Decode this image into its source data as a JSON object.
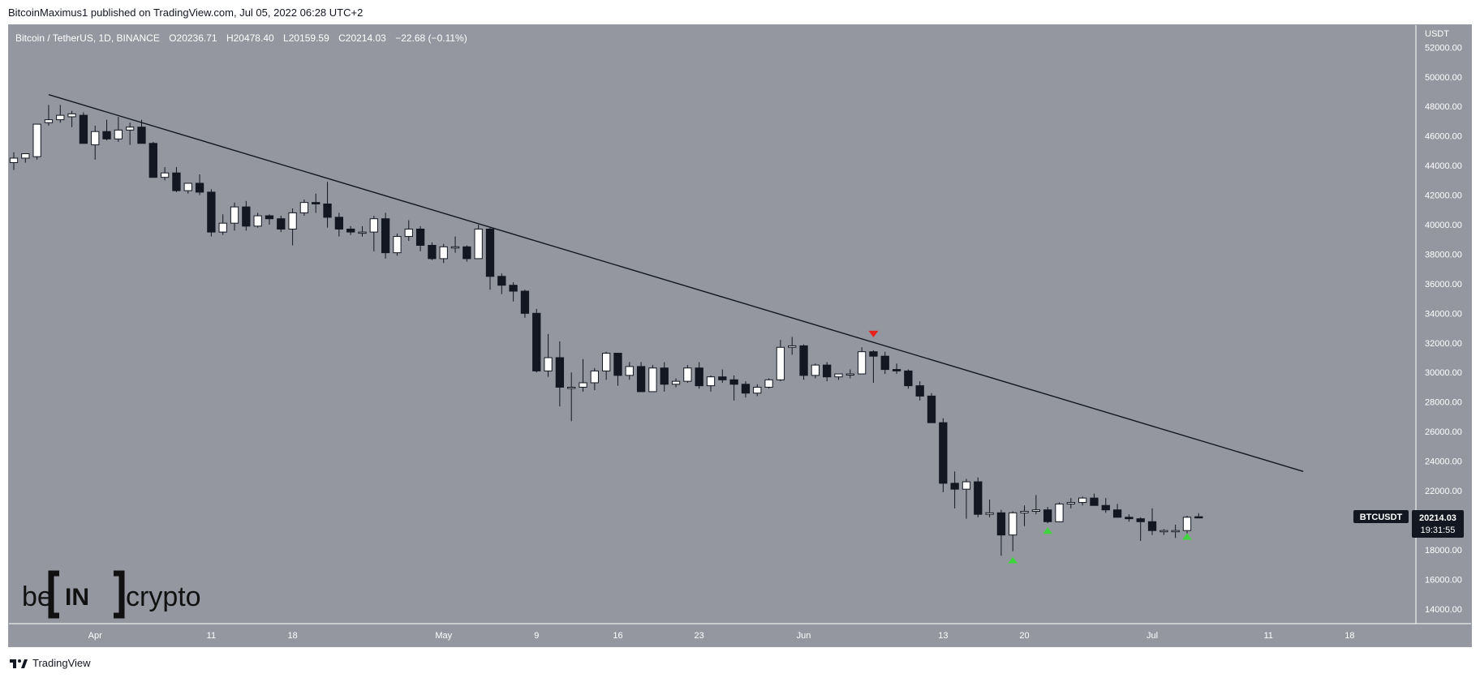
{
  "header": {
    "published_text": "BitcoinMaximus1 published on TradingView.com, Jul 05, 2022 06:28 UTC+2"
  },
  "symbol_info": {
    "title": "Bitcoin / TetherUS, 1D, BINANCE",
    "open_label": "O",
    "open": "20236.71",
    "high_label": "H",
    "high": "20478.40",
    "low_label": "L",
    "low": "20159.59",
    "close_label": "C",
    "close": "20214.03",
    "change": "−22.68 (−0.11%)"
  },
  "price_tag": {
    "symbol": "BTCUSDT",
    "price": "20214.03",
    "countdown": "19:31:55"
  },
  "watermark": {
    "text_left": "be",
    "text_bracket": "IN",
    "text_right": "crypto"
  },
  "footer": {
    "brand": "TradingView"
  },
  "colors": {
    "background": "#94979f",
    "candle_up": "#ffffff",
    "candle_down": "#131722",
    "trendline": "#131722",
    "marker_down": "#e8221b",
    "marker_up": "#3fd43f"
  },
  "chart_data": {
    "type": "candlestick",
    "title": "Bitcoin / TetherUS, 1D, BINANCE",
    "y_axis_unit": "USDT",
    "ylim": [
      13000,
      53500
    ],
    "y_ticks": [
      14000,
      16000,
      18000,
      20000,
      22000,
      24000,
      26000,
      28000,
      30000,
      32000,
      34000,
      36000,
      38000,
      40000,
      42000,
      44000,
      46000,
      48000,
      50000,
      52000
    ],
    "y_tick_labels": [
      "14000.00",
      "16000.00",
      "18000.00",
      "20000.00",
      "22000.00",
      "24000.00",
      "26000.00",
      "28000.00",
      "30000.00",
      "32000.00",
      "34000.00",
      "36000.00",
      "38000.00",
      "40000.00",
      "42000.00",
      "44000.00",
      "46000.00",
      "48000.00",
      "50000.00",
      "52000.00"
    ],
    "x_start_date": "2022-03-25",
    "x_end_date": "2022-07-23",
    "x_ticks": [
      {
        "date": "2022-04-01",
        "label": "Apr"
      },
      {
        "date": "2022-04-11",
        "label": "11"
      },
      {
        "date": "2022-04-18",
        "label": "18"
      },
      {
        "date": "2022-05-01",
        "label": "May"
      },
      {
        "date": "2022-05-09",
        "label": "9"
      },
      {
        "date": "2022-05-16",
        "label": "16"
      },
      {
        "date": "2022-05-23",
        "label": "23"
      },
      {
        "date": "2022-06-01",
        "label": "Jun"
      },
      {
        "date": "2022-06-13",
        "label": "13"
      },
      {
        "date": "2022-06-20",
        "label": "20"
      },
      {
        "date": "2022-07-01",
        "label": "Jul"
      },
      {
        "date": "2022-07-11",
        "label": "11"
      },
      {
        "date": "2022-07-18",
        "label": "18"
      }
    ],
    "candles": [
      {
        "date": "2022-03-25",
        "o": 44200,
        "h": 44900,
        "l": 43700,
        "c": 44500
      },
      {
        "date": "2022-03-26",
        "o": 44500,
        "h": 44800,
        "l": 44200,
        "c": 44800
      },
      {
        "date": "2022-03-27",
        "o": 44600,
        "h": 46800,
        "l": 44400,
        "c": 46800
      },
      {
        "date": "2022-03-28",
        "o": 46900,
        "h": 48100,
        "l": 46700,
        "c": 47100
      },
      {
        "date": "2022-03-29",
        "o": 47100,
        "h": 48100,
        "l": 46900,
        "c": 47400
      },
      {
        "date": "2022-03-30",
        "o": 47300,
        "h": 47700,
        "l": 46600,
        "c": 47500
      },
      {
        "date": "2022-03-31",
        "o": 47400,
        "h": 47600,
        "l": 45600,
        "c": 45500
      },
      {
        "date": "2022-04-01",
        "o": 45400,
        "h": 46700,
        "l": 44400,
        "c": 46300
      },
      {
        "date": "2022-04-02",
        "o": 46300,
        "h": 47100,
        "l": 45700,
        "c": 45800
      },
      {
        "date": "2022-04-03",
        "o": 45800,
        "h": 47300,
        "l": 45600,
        "c": 46400
      },
      {
        "date": "2022-04-04",
        "o": 46400,
        "h": 46900,
        "l": 45400,
        "c": 46600
      },
      {
        "date": "2022-04-05",
        "o": 46600,
        "h": 47100,
        "l": 45600,
        "c": 45500
      },
      {
        "date": "2022-04-06",
        "o": 45500,
        "h": 45600,
        "l": 43200,
        "c": 43200
      },
      {
        "date": "2022-04-07",
        "o": 43200,
        "h": 43900,
        "l": 43000,
        "c": 43500
      },
      {
        "date": "2022-04-08",
        "o": 43500,
        "h": 43900,
        "l": 42200,
        "c": 42300
      },
      {
        "date": "2022-04-09",
        "o": 42300,
        "h": 42800,
        "l": 42100,
        "c": 42800
      },
      {
        "date": "2022-04-10",
        "o": 42800,
        "h": 43400,
        "l": 42000,
        "c": 42200
      },
      {
        "date": "2022-04-11",
        "o": 42200,
        "h": 42400,
        "l": 39200,
        "c": 39500
      },
      {
        "date": "2022-04-12",
        "o": 39500,
        "h": 40700,
        "l": 39300,
        "c": 40100
      },
      {
        "date": "2022-04-13",
        "o": 40100,
        "h": 41500,
        "l": 39600,
        "c": 41200
      },
      {
        "date": "2022-04-14",
        "o": 41200,
        "h": 41600,
        "l": 39600,
        "c": 39900
      },
      {
        "date": "2022-04-15",
        "o": 39900,
        "h": 40800,
        "l": 39800,
        "c": 40600
      },
      {
        "date": "2022-04-16",
        "o": 40600,
        "h": 40700,
        "l": 40000,
        "c": 40400
      },
      {
        "date": "2022-04-17",
        "o": 40400,
        "h": 40600,
        "l": 39500,
        "c": 39700
      },
      {
        "date": "2022-04-18",
        "o": 39700,
        "h": 41100,
        "l": 38600,
        "c": 40800
      },
      {
        "date": "2022-04-19",
        "o": 40800,
        "h": 41700,
        "l": 40600,
        "c": 41500
      },
      {
        "date": "2022-04-20",
        "o": 41500,
        "h": 42100,
        "l": 40800,
        "c": 41400
      },
      {
        "date": "2022-04-21",
        "o": 41400,
        "h": 42900,
        "l": 39800,
        "c": 40500
      },
      {
        "date": "2022-04-22",
        "o": 40500,
        "h": 40800,
        "l": 39200,
        "c": 39700
      },
      {
        "date": "2022-04-23",
        "o": 39700,
        "h": 39900,
        "l": 39300,
        "c": 39500
      },
      {
        "date": "2022-04-24",
        "o": 39500,
        "h": 39900,
        "l": 39200,
        "c": 39500
      },
      {
        "date": "2022-04-25",
        "o": 39500,
        "h": 40600,
        "l": 38200,
        "c": 40400
      },
      {
        "date": "2022-04-26",
        "o": 40400,
        "h": 40800,
        "l": 37700,
        "c": 38100
      },
      {
        "date": "2022-04-27",
        "o": 38100,
        "h": 39400,
        "l": 37900,
        "c": 39200
      },
      {
        "date": "2022-04-28",
        "o": 39200,
        "h": 40300,
        "l": 38900,
        "c": 39700
      },
      {
        "date": "2022-04-29",
        "o": 39700,
        "h": 39900,
        "l": 38200,
        "c": 38600
      },
      {
        "date": "2022-04-30",
        "o": 38600,
        "h": 38800,
        "l": 37600,
        "c": 37700
      },
      {
        "date": "2022-05-01",
        "o": 37700,
        "h": 38700,
        "l": 37400,
        "c": 38500
      },
      {
        "date": "2022-05-02",
        "o": 38500,
        "h": 39200,
        "l": 38100,
        "c": 38500
      },
      {
        "date": "2022-05-03",
        "o": 38500,
        "h": 38600,
        "l": 37500,
        "c": 37700
      },
      {
        "date": "2022-05-04",
        "o": 37700,
        "h": 40000,
        "l": 37700,
        "c": 39700
      },
      {
        "date": "2022-05-05",
        "o": 39700,
        "h": 39800,
        "l": 35600,
        "c": 36500
      },
      {
        "date": "2022-05-06",
        "o": 36500,
        "h": 36700,
        "l": 35300,
        "c": 35900
      },
      {
        "date": "2022-05-07",
        "o": 35900,
        "h": 36100,
        "l": 34800,
        "c": 35500
      },
      {
        "date": "2022-05-08",
        "o": 35500,
        "h": 35600,
        "l": 33700,
        "c": 34000
      },
      {
        "date": "2022-05-09",
        "o": 34000,
        "h": 34300,
        "l": 30000,
        "c": 30100
      },
      {
        "date": "2022-05-10",
        "o": 30100,
        "h": 32600,
        "l": 29700,
        "c": 31000
      },
      {
        "date": "2022-05-11",
        "o": 31000,
        "h": 32100,
        "l": 27700,
        "c": 29000
      },
      {
        "date": "2022-05-12",
        "o": 29000,
        "h": 30000,
        "l": 26700,
        "c": 29000
      },
      {
        "date": "2022-05-13",
        "o": 29000,
        "h": 30900,
        "l": 28700,
        "c": 29300
      },
      {
        "date": "2022-05-14",
        "o": 29300,
        "h": 30300,
        "l": 28800,
        "c": 30100
      },
      {
        "date": "2022-05-15",
        "o": 30100,
        "h": 31400,
        "l": 29500,
        "c": 31300
      },
      {
        "date": "2022-05-16",
        "o": 31300,
        "h": 31300,
        "l": 29100,
        "c": 29800
      },
      {
        "date": "2022-05-17",
        "o": 29800,
        "h": 30700,
        "l": 29500,
        "c": 30400
      },
      {
        "date": "2022-05-18",
        "o": 30400,
        "h": 30700,
        "l": 28700,
        "c": 28700
      },
      {
        "date": "2022-05-19",
        "o": 28700,
        "h": 30500,
        "l": 28700,
        "c": 30300
      },
      {
        "date": "2022-05-20",
        "o": 30300,
        "h": 30700,
        "l": 28700,
        "c": 29200
      },
      {
        "date": "2022-05-21",
        "o": 29200,
        "h": 29600,
        "l": 29000,
        "c": 29400
      },
      {
        "date": "2022-05-22",
        "o": 29400,
        "h": 30500,
        "l": 29300,
        "c": 30300
      },
      {
        "date": "2022-05-23",
        "o": 30300,
        "h": 30700,
        "l": 28900,
        "c": 29100
      },
      {
        "date": "2022-05-24",
        "o": 29100,
        "h": 29800,
        "l": 28700,
        "c": 29700
      },
      {
        "date": "2022-05-25",
        "o": 29700,
        "h": 30200,
        "l": 29300,
        "c": 29500
      },
      {
        "date": "2022-05-26",
        "o": 29500,
        "h": 29800,
        "l": 28100,
        "c": 29200
      },
      {
        "date": "2022-05-27",
        "o": 29200,
        "h": 29400,
        "l": 28300,
        "c": 28600
      },
      {
        "date": "2022-05-28",
        "o": 28600,
        "h": 29200,
        "l": 28400,
        "c": 29000
      },
      {
        "date": "2022-05-29",
        "o": 29000,
        "h": 29600,
        "l": 28900,
        "c": 29500
      },
      {
        "date": "2022-05-30",
        "o": 29500,
        "h": 32200,
        "l": 29400,
        "c": 31700
      },
      {
        "date": "2022-05-31",
        "o": 31700,
        "h": 32400,
        "l": 31200,
        "c": 31800
      },
      {
        "date": "2022-06-01",
        "o": 31800,
        "h": 31900,
        "l": 29500,
        "c": 29800
      },
      {
        "date": "2022-06-02",
        "o": 29800,
        "h": 30600,
        "l": 29600,
        "c": 30500
      },
      {
        "date": "2022-06-03",
        "o": 30500,
        "h": 30700,
        "l": 29400,
        "c": 29700
      },
      {
        "date": "2022-06-04",
        "o": 29700,
        "h": 29900,
        "l": 29500,
        "c": 29900
      },
      {
        "date": "2022-06-05",
        "o": 29900,
        "h": 30200,
        "l": 29600,
        "c": 29900
      },
      {
        "date": "2022-06-06",
        "o": 29900,
        "h": 31700,
        "l": 29900,
        "c": 31400
      },
      {
        "date": "2022-06-07",
        "o": 31400,
        "h": 31500,
        "l": 29300,
        "c": 31100
      },
      {
        "date": "2022-06-08",
        "o": 31100,
        "h": 31400,
        "l": 29900,
        "c": 30200
      },
      {
        "date": "2022-06-09",
        "o": 30200,
        "h": 30600,
        "l": 29900,
        "c": 30100
      },
      {
        "date": "2022-06-10",
        "o": 30100,
        "h": 30200,
        "l": 28900,
        "c": 29100
      },
      {
        "date": "2022-06-11",
        "o": 29100,
        "h": 29400,
        "l": 28100,
        "c": 28400
      },
      {
        "date": "2022-06-12",
        "o": 28400,
        "h": 28600,
        "l": 26600,
        "c": 26600
      },
      {
        "date": "2022-06-13",
        "o": 26600,
        "h": 26900,
        "l": 21900,
        "c": 22500
      },
      {
        "date": "2022-06-14",
        "o": 22500,
        "h": 23300,
        "l": 20800,
        "c": 22100
      },
      {
        "date": "2022-06-15",
        "o": 22100,
        "h": 22800,
        "l": 20100,
        "c": 22600
      },
      {
        "date": "2022-06-16",
        "o": 22600,
        "h": 22900,
        "l": 20200,
        "c": 20400
      },
      {
        "date": "2022-06-17",
        "o": 20400,
        "h": 21400,
        "l": 20200,
        "c": 20500
      },
      {
        "date": "2022-06-18",
        "o": 20500,
        "h": 20700,
        "l": 17600,
        "c": 19000
      },
      {
        "date": "2022-06-19",
        "o": 19000,
        "h": 20600,
        "l": 17900,
        "c": 20500
      },
      {
        "date": "2022-06-20",
        "o": 20500,
        "h": 21000,
        "l": 19600,
        "c": 20600
      },
      {
        "date": "2022-06-21",
        "o": 20600,
        "h": 21700,
        "l": 20400,
        "c": 20700
      },
      {
        "date": "2022-06-22",
        "o": 20700,
        "h": 20900,
        "l": 19800,
        "c": 19900
      },
      {
        "date": "2022-06-23",
        "o": 19900,
        "h": 21200,
        "l": 19900,
        "c": 21100
      },
      {
        "date": "2022-06-24",
        "o": 21100,
        "h": 21500,
        "l": 20800,
        "c": 21200
      },
      {
        "date": "2022-06-25",
        "o": 21200,
        "h": 21600,
        "l": 21000,
        "c": 21500
      },
      {
        "date": "2022-06-26",
        "o": 21500,
        "h": 21800,
        "l": 21000,
        "c": 21000
      },
      {
        "date": "2022-06-27",
        "o": 21000,
        "h": 21500,
        "l": 20500,
        "c": 20700
      },
      {
        "date": "2022-06-28",
        "o": 20700,
        "h": 21100,
        "l": 20200,
        "c": 20200
      },
      {
        "date": "2022-06-29",
        "o": 20200,
        "h": 20400,
        "l": 19900,
        "c": 20100
      },
      {
        "date": "2022-06-30",
        "o": 20100,
        "h": 20200,
        "l": 18600,
        "c": 19900
      },
      {
        "date": "2022-07-01",
        "o": 19900,
        "h": 20800,
        "l": 19000,
        "c": 19300
      },
      {
        "date": "2022-07-02",
        "o": 19300,
        "h": 19400,
        "l": 19000,
        "c": 19300
      },
      {
        "date": "2022-07-03",
        "o": 19300,
        "h": 19700,
        "l": 18800,
        "c": 19300
      },
      {
        "date": "2022-07-04",
        "o": 19300,
        "h": 20300,
        "l": 19100,
        "c": 20200
      },
      {
        "date": "2022-07-05",
        "o": 20236.71,
        "h": 20478.4,
        "l": 20159.59,
        "c": 20214.03
      }
    ],
    "trendline": {
      "start": {
        "date": "2022-03-28",
        "price": 48800
      },
      "end": {
        "date": "2022-07-14",
        "price": 23300
      }
    },
    "markers": [
      {
        "date": "2022-06-07",
        "price": 32600,
        "direction": "down",
        "color": "#e8221b"
      },
      {
        "date": "2022-06-19",
        "price": 17300,
        "direction": "up",
        "color": "#3fd43f"
      },
      {
        "date": "2022-06-22",
        "price": 19300,
        "direction": "up",
        "color": "#3fd43f"
      },
      {
        "date": "2022-07-04",
        "price": 18900,
        "direction": "up",
        "color": "#3fd43f"
      }
    ],
    "last_price": 20214.03
  }
}
